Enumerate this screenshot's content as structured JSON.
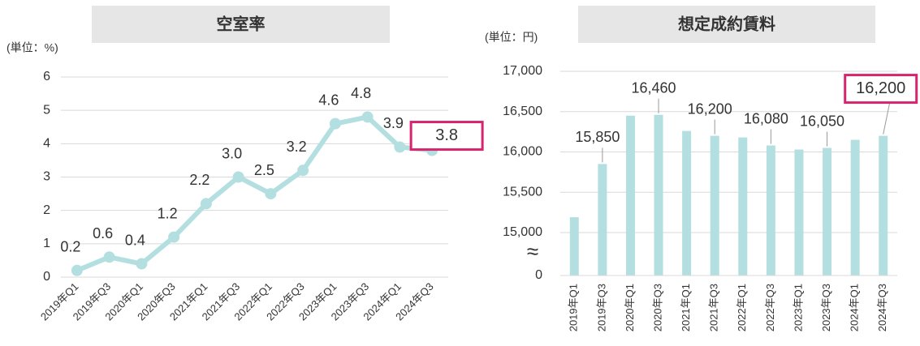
{
  "chart_data": [
    {
      "type": "line",
      "title": "空室率",
      "unit_label": "(単位：%)",
      "categories": [
        "2019年Q1",
        "2019年Q3",
        "2020年Q1",
        "2020年Q3",
        "2021年Q1",
        "2021年Q3",
        "2022年Q1",
        "2022年Q3",
        "2023年Q1",
        "2023年Q3",
        "2024年Q1",
        "2024年Q3"
      ],
      "values": [
        0.2,
        0.6,
        0.4,
        1.2,
        2.2,
        3.0,
        2.5,
        3.2,
        4.6,
        4.8,
        3.9,
        3.8
      ],
      "value_labels": [
        "0.2",
        "0.6",
        "0.4",
        "1.2",
        "2.2",
        "3.0",
        "2.5",
        "3.2",
        "4.6",
        "4.8",
        "3.9",
        "3.8"
      ],
      "color": "#b4dfe0",
      "ylim": [
        0,
        6
      ],
      "yticks": [
        0,
        1,
        2,
        3,
        4,
        5,
        6
      ],
      "grid": true,
      "highlight_index": 11,
      "highlight_color": "#d6246e"
    },
    {
      "type": "bar",
      "title": "想定成約賃料",
      "unit_label": "(単位：円)",
      "categories": [
        "2019年Q1",
        "2019年Q3",
        "2020年Q1",
        "2020年Q3",
        "2021年Q1",
        "2021年Q3",
        "2022年Q1",
        "2022年Q3",
        "2023年Q1",
        "2023年Q3",
        "2024年Q1",
        "2024年Q3"
      ],
      "values": [
        15190,
        15850,
        16450,
        16460,
        16260,
        16200,
        16180,
        16080,
        16030,
        16050,
        16150,
        16200
      ],
      "value_labels": [
        null,
        "15,850",
        null,
        "16,460",
        null,
        "16,200",
        null,
        "16,080",
        null,
        "16,050",
        null,
        "16,200"
      ],
      "color": "#b4dfe0",
      "ylim": [
        0,
        17000
      ],
      "axis_break": [
        0,
        15000
      ],
      "break_symbol": "≈",
      "yticks": [
        0,
        {
          "value": 15000,
          "label": "15,000"
        },
        {
          "value": 15500,
          "label": "15,500"
        },
        {
          "value": 16000,
          "label": "16,000"
        },
        {
          "value": 16500,
          "label": "16,500"
        },
        {
          "value": 17000,
          "label": "17,000"
        }
      ],
      "grid": true,
      "highlight_index": 11,
      "highlight_color": "#d6246e"
    }
  ]
}
